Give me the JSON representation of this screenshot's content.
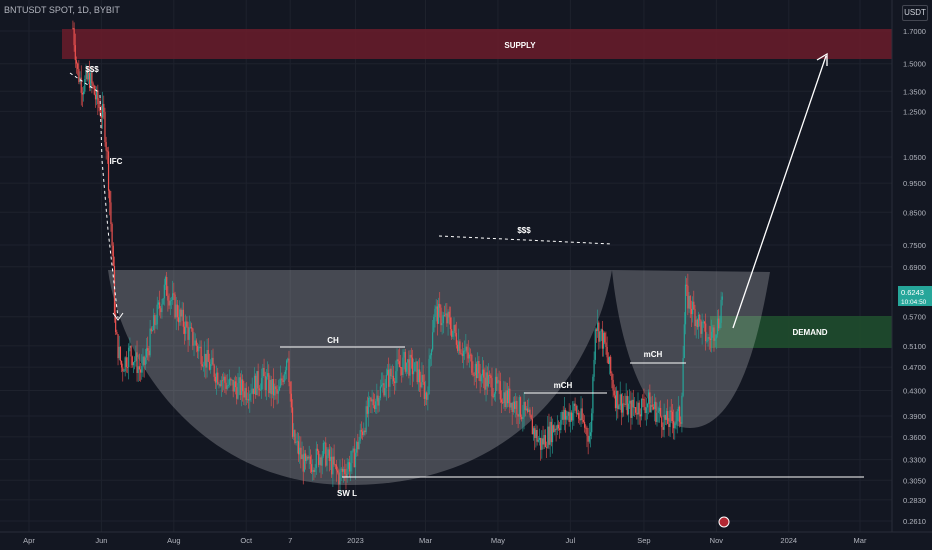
{
  "header": {
    "symbol_title": "BNTUSDT SPOT, 1D, BYBIT",
    "unit_label": "USDT"
  },
  "colors": {
    "background": "#131722",
    "up": "#26a69a",
    "down": "#ef5350",
    "supply_zone": "#6b1c2a",
    "demand_zone": "#1f4d2e",
    "cup": "#ffffff",
    "last_price_bg": "#26a69a"
  },
  "chart_data": {
    "type": "candlestick",
    "title": "",
    "x_tick_labels": [
      "Apr",
      "Jun",
      "Aug",
      "Oct",
      "7",
      "2023",
      "Mar",
      "May",
      "Jul",
      "Sep",
      "Nov",
      "2024",
      "Mar"
    ],
    "y_tick_labels": [
      "1.7000",
      "1.5000",
      "1.3500",
      "1.2500",
      "1.0500",
      "0.9500",
      "0.8500",
      "0.7500",
      "0.6900",
      "0.5700",
      "0.5100",
      "0.4700",
      "0.4300",
      "0.3900",
      "0.3600",
      "0.3300",
      "0.3050",
      "0.2830",
      "0.2610"
    ],
    "y_scale": "log",
    "last_price": "0.6243",
    "countdown": "10:04:50",
    "price_path": [
      [
        "2022-05-08",
        1.72
      ],
      [
        "2022-05-12",
        1.45
      ],
      [
        "2022-05-16",
        1.38
      ],
      [
        "2022-05-22",
        1.42
      ],
      [
        "2022-05-28",
        1.3
      ],
      [
        "2022-06-03",
        1.22
      ],
      [
        "2022-06-06",
        1.05
      ],
      [
        "2022-06-10",
        0.75
      ],
      [
        "2022-06-13",
        0.53
      ],
      [
        "2022-06-18",
        0.47
      ],
      [
        "2022-06-25",
        0.5
      ],
      [
        "2022-07-05",
        0.46
      ],
      [
        "2022-07-15",
        0.55
      ],
      [
        "2022-07-25",
        0.64
      ],
      [
        "2022-08-02",
        0.59
      ],
      [
        "2022-08-15",
        0.53
      ],
      [
        "2022-09-01",
        0.47
      ],
      [
        "2022-09-15",
        0.44
      ],
      [
        "2022-10-01",
        0.43
      ],
      [
        "2022-10-15",
        0.45
      ],
      [
        "2022-10-28",
        0.42
      ],
      [
        "2022-11-05",
        0.5
      ],
      [
        "2022-11-09",
        0.36
      ],
      [
        "2022-11-20",
        0.32
      ],
      [
        "2022-12-05",
        0.34
      ],
      [
        "2022-12-18",
        0.31
      ],
      [
        "2022-12-30",
        0.33
      ],
      [
        "2023-01-12",
        0.4
      ],
      [
        "2023-01-28",
        0.45
      ],
      [
        "2023-02-12",
        0.48
      ],
      [
        "2023-02-22",
        0.46
      ],
      [
        "2023-03-02",
        0.42
      ],
      [
        "2023-03-08",
        0.58
      ],
      [
        "2023-03-20",
        0.56
      ],
      [
        "2023-04-02",
        0.5
      ],
      [
        "2023-04-15",
        0.46
      ],
      [
        "2023-05-01",
        0.43
      ],
      [
        "2023-05-15",
        0.41
      ],
      [
        "2023-05-25",
        0.39
      ],
      [
        "2023-06-06",
        0.35
      ],
      [
        "2023-06-20",
        0.38
      ],
      [
        "2023-07-05",
        0.4
      ],
      [
        "2023-07-18",
        0.36
      ],
      [
        "2023-07-22",
        0.56
      ],
      [
        "2023-07-30",
        0.51
      ],
      [
        "2023-08-08",
        0.42
      ],
      [
        "2023-08-20",
        0.4
      ],
      [
        "2023-09-05",
        0.41
      ],
      [
        "2023-09-20",
        0.38
      ],
      [
        "2023-10-02",
        0.39
      ],
      [
        "2023-10-06",
        0.62
      ],
      [
        "2023-10-15",
        0.57
      ],
      [
        "2023-10-25",
        0.52
      ],
      [
        "2023-11-03",
        0.56
      ],
      [
        "2023-11-06",
        0.6243
      ]
    ],
    "grid": true
  },
  "annotations": {
    "supply": "SUPPLY",
    "demand": "DEMAND",
    "liquidity_top": "$$$",
    "liquidity_mid": "$$$",
    "ifc": "IFC",
    "ch": "CH",
    "mch_1": "mCH",
    "mch_2": "mCH",
    "swing_low": "SW L"
  }
}
